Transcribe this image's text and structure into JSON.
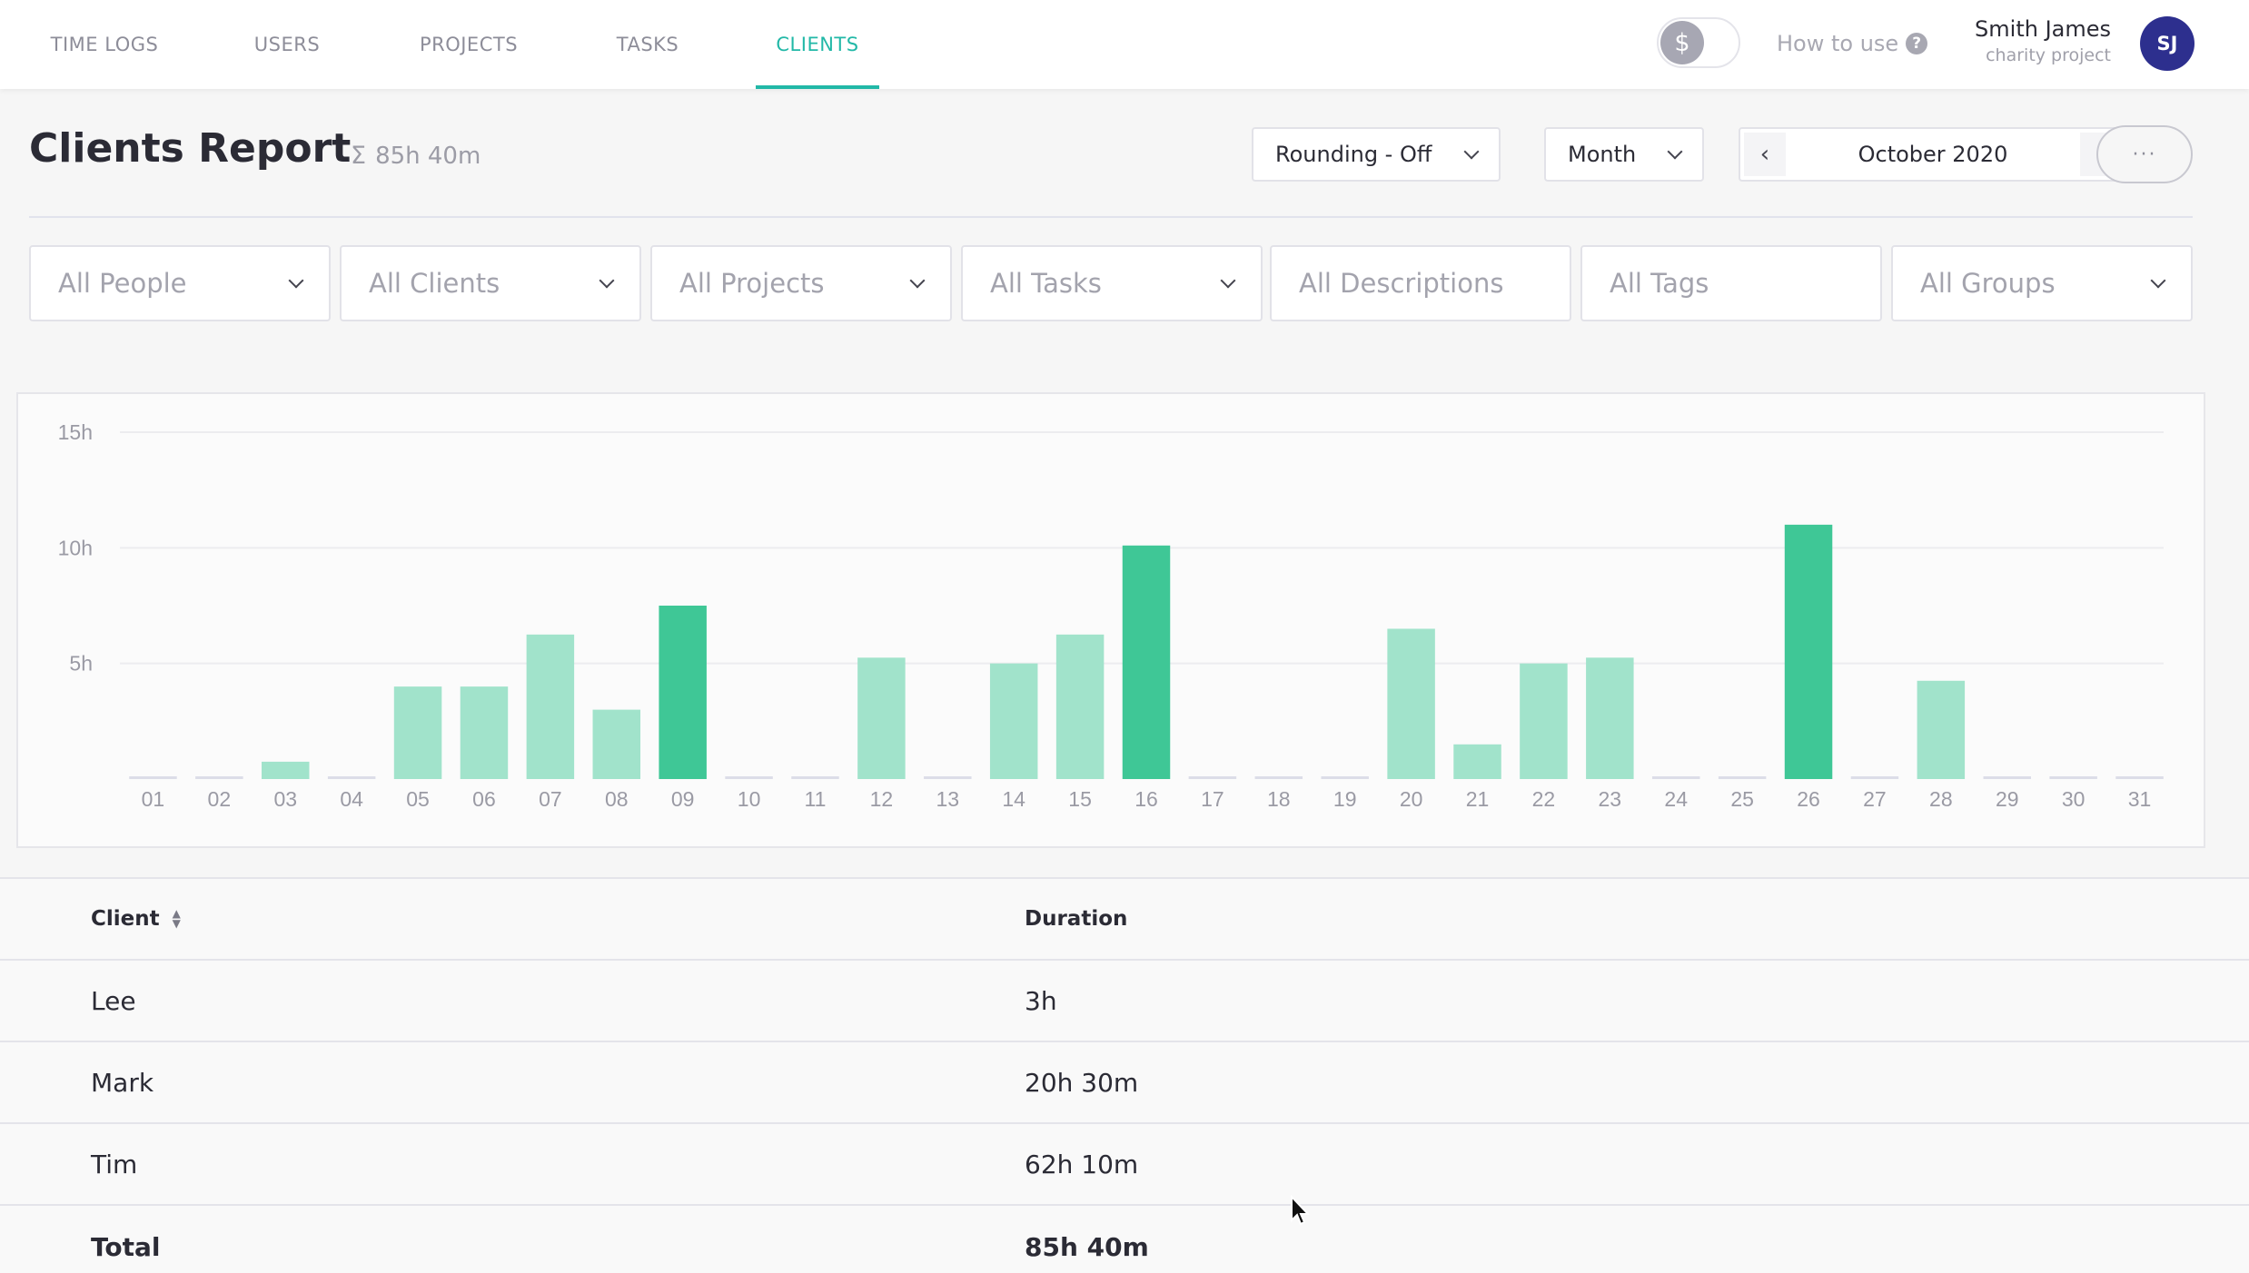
{
  "nav": {
    "tabs": [
      {
        "label": "TIME LOGS",
        "active": false
      },
      {
        "label": "USERS",
        "active": false
      },
      {
        "label": "PROJECTS",
        "active": false
      },
      {
        "label": "TASKS",
        "active": false
      },
      {
        "label": "CLIENTS",
        "active": true
      }
    ],
    "billable_toggle_symbol": "$",
    "how_to_use": "How to use",
    "help_symbol": "?",
    "user": {
      "name": "Smith James",
      "project": "charity project",
      "initials": "SJ"
    },
    "accent_color": "#22b8a7",
    "avatar_color": "#2d2f8e"
  },
  "header": {
    "title": "Clients Report",
    "sigma": "Σ",
    "total": "85h 40m",
    "rounding": "Rounding - Off",
    "period": "Month",
    "date_label": "October 2020",
    "prev_symbol": "‹",
    "next_symbol": "›",
    "more_symbol": "···"
  },
  "filters": [
    {
      "label": "All People",
      "dropdown": true
    },
    {
      "label": "All Clients",
      "dropdown": true
    },
    {
      "label": "All Projects",
      "dropdown": true
    },
    {
      "label": "All Tasks",
      "dropdown": true
    },
    {
      "label": "All Descriptions",
      "dropdown": false
    },
    {
      "label": "All Tags",
      "dropdown": false
    },
    {
      "label": "All Groups",
      "dropdown": true
    }
  ],
  "chart_data": {
    "type": "bar",
    "title": "",
    "xlabel": "",
    "ylabel": "",
    "categories": [
      "01",
      "02",
      "03",
      "04",
      "05",
      "06",
      "07",
      "08",
      "09",
      "10",
      "11",
      "12",
      "13",
      "14",
      "15",
      "16",
      "17",
      "18",
      "19",
      "20",
      "21",
      "22",
      "23",
      "24",
      "25",
      "26",
      "27",
      "28",
      "29",
      "30",
      "31"
    ],
    "values": [
      0,
      0,
      0.75,
      0,
      4,
      4,
      6.25,
      3,
      7.5,
      0,
      0,
      5.25,
      0,
      5,
      6.25,
      10.1,
      0,
      0,
      0,
      6.5,
      1.5,
      5,
      5.25,
      0,
      0,
      11,
      0,
      4.25,
      0,
      0,
      0
    ],
    "highlighted": [
      "09",
      "16",
      "26"
    ],
    "yticks": [
      {
        "value": 5,
        "label": "5h"
      },
      {
        "value": 10,
        "label": "10h"
      },
      {
        "value": 15,
        "label": "15h"
      }
    ],
    "ylim": [
      0,
      15
    ],
    "grid": true,
    "colors": {
      "bar": "#a1e3cb",
      "bar_highlight": "#3fc796",
      "empty": "#dcdde8",
      "grid": "#ececef"
    }
  },
  "table": {
    "headers": {
      "client": "Client",
      "duration": "Duration"
    },
    "rows": [
      {
        "client": "Lee",
        "duration": "3h"
      },
      {
        "client": "Mark",
        "duration": "20h 30m"
      },
      {
        "client": "Tim",
        "duration": "62h 10m"
      }
    ],
    "total": {
      "label": "Total",
      "duration": "85h 40m"
    }
  }
}
